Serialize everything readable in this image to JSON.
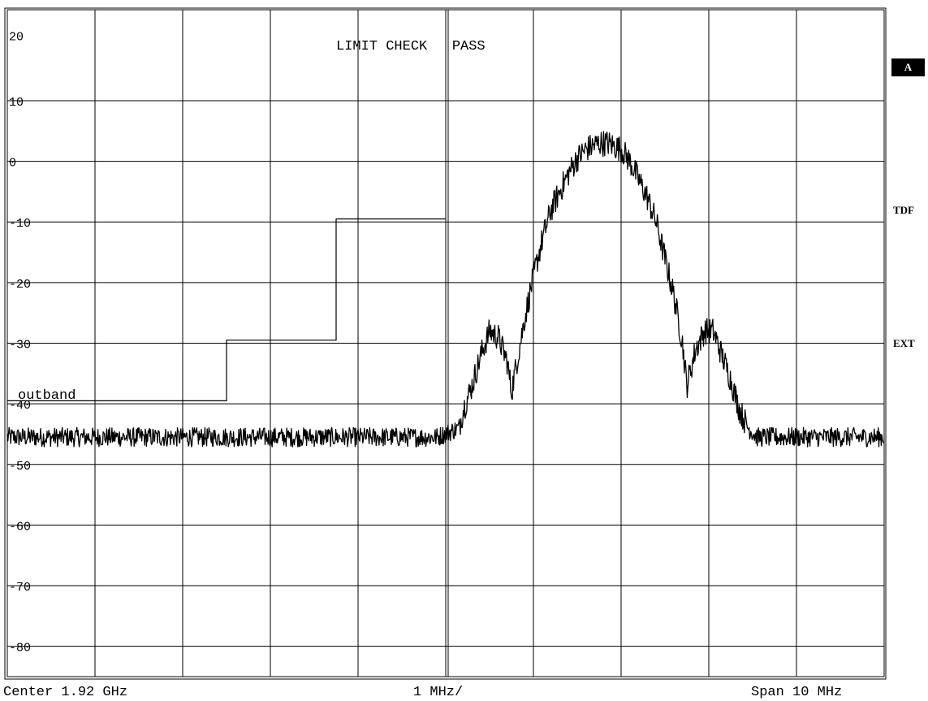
{
  "chart_data": {
    "type": "line",
    "annotation": "LIMIT CHECK   PASS",
    "limit_line_label": "outband",
    "ylim": [
      -85,
      25
    ],
    "xlim_mhz": [
      -5,
      5
    ],
    "y_tick_labels": [
      "20",
      "10",
      "0",
      "-10",
      "-20",
      "-30",
      "-40",
      "-50",
      "-60",
      "-70",
      "-80"
    ],
    "y_ticks": [
      20,
      10,
      0,
      -10,
      -20,
      -30,
      -40,
      -50,
      -60,
      -70,
      -80
    ],
    "x_divisions": 10,
    "grid": true,
    "center_label": "Center 1.92 GHz",
    "div_label": "1 MHz/",
    "span_label": "Span 10 MHz",
    "limit_line": [
      {
        "x": -5.0,
        "y": -39.5
      },
      {
        "x": -2.5,
        "y": -39.5
      },
      {
        "x": -2.5,
        "y": -29.5
      },
      {
        "x": -1.25,
        "y": -29.5
      },
      {
        "x": -1.25,
        "y": -9.5
      },
      {
        "x": 0.0,
        "y": -9.5
      }
    ],
    "trace_envelope": [
      {
        "x": -5.0,
        "y": -45.5
      },
      {
        "x": -0.1,
        "y": -45.5
      },
      {
        "x": 0.15,
        "y": -44
      },
      {
        "x": 0.2,
        "y": -41
      },
      {
        "x": 0.3,
        "y": -37
      },
      {
        "x": 0.4,
        "y": -32
      },
      {
        "x": 0.5,
        "y": -28
      },
      {
        "x": 0.6,
        "y": -29
      },
      {
        "x": 0.7,
        "y": -33
      },
      {
        "x": 0.75,
        "y": -38
      },
      {
        "x": 0.8,
        "y": -34
      },
      {
        "x": 0.9,
        "y": -26
      },
      {
        "x": 1.0,
        "y": -19
      },
      {
        "x": 1.1,
        "y": -13
      },
      {
        "x": 1.2,
        "y": -8
      },
      {
        "x": 1.3,
        "y": -5
      },
      {
        "x": 1.4,
        "y": -2
      },
      {
        "x": 1.5,
        "y": 0.5
      },
      {
        "x": 1.6,
        "y": 2
      },
      {
        "x": 1.75,
        "y": 3
      },
      {
        "x": 1.85,
        "y": 3
      },
      {
        "x": 2.0,
        "y": 2
      },
      {
        "x": 2.1,
        "y": 0
      },
      {
        "x": 2.2,
        "y": -3
      },
      {
        "x": 2.3,
        "y": -6
      },
      {
        "x": 2.4,
        "y": -10
      },
      {
        "x": 2.5,
        "y": -16
      },
      {
        "x": 2.6,
        "y": -22
      },
      {
        "x": 2.7,
        "y": -30
      },
      {
        "x": 2.75,
        "y": -37
      },
      {
        "x": 2.85,
        "y": -31
      },
      {
        "x": 2.95,
        "y": -28
      },
      {
        "x": 3.05,
        "y": -28
      },
      {
        "x": 3.15,
        "y": -32
      },
      {
        "x": 3.25,
        "y": -36
      },
      {
        "x": 3.35,
        "y": -41
      },
      {
        "x": 3.45,
        "y": -44
      },
      {
        "x": 3.55,
        "y": -45.5
      },
      {
        "x": 5.0,
        "y": -45.5
      }
    ]
  },
  "side_labels": {
    "a": "A",
    "tdf": "TDF",
    "ext": "EXT"
  }
}
